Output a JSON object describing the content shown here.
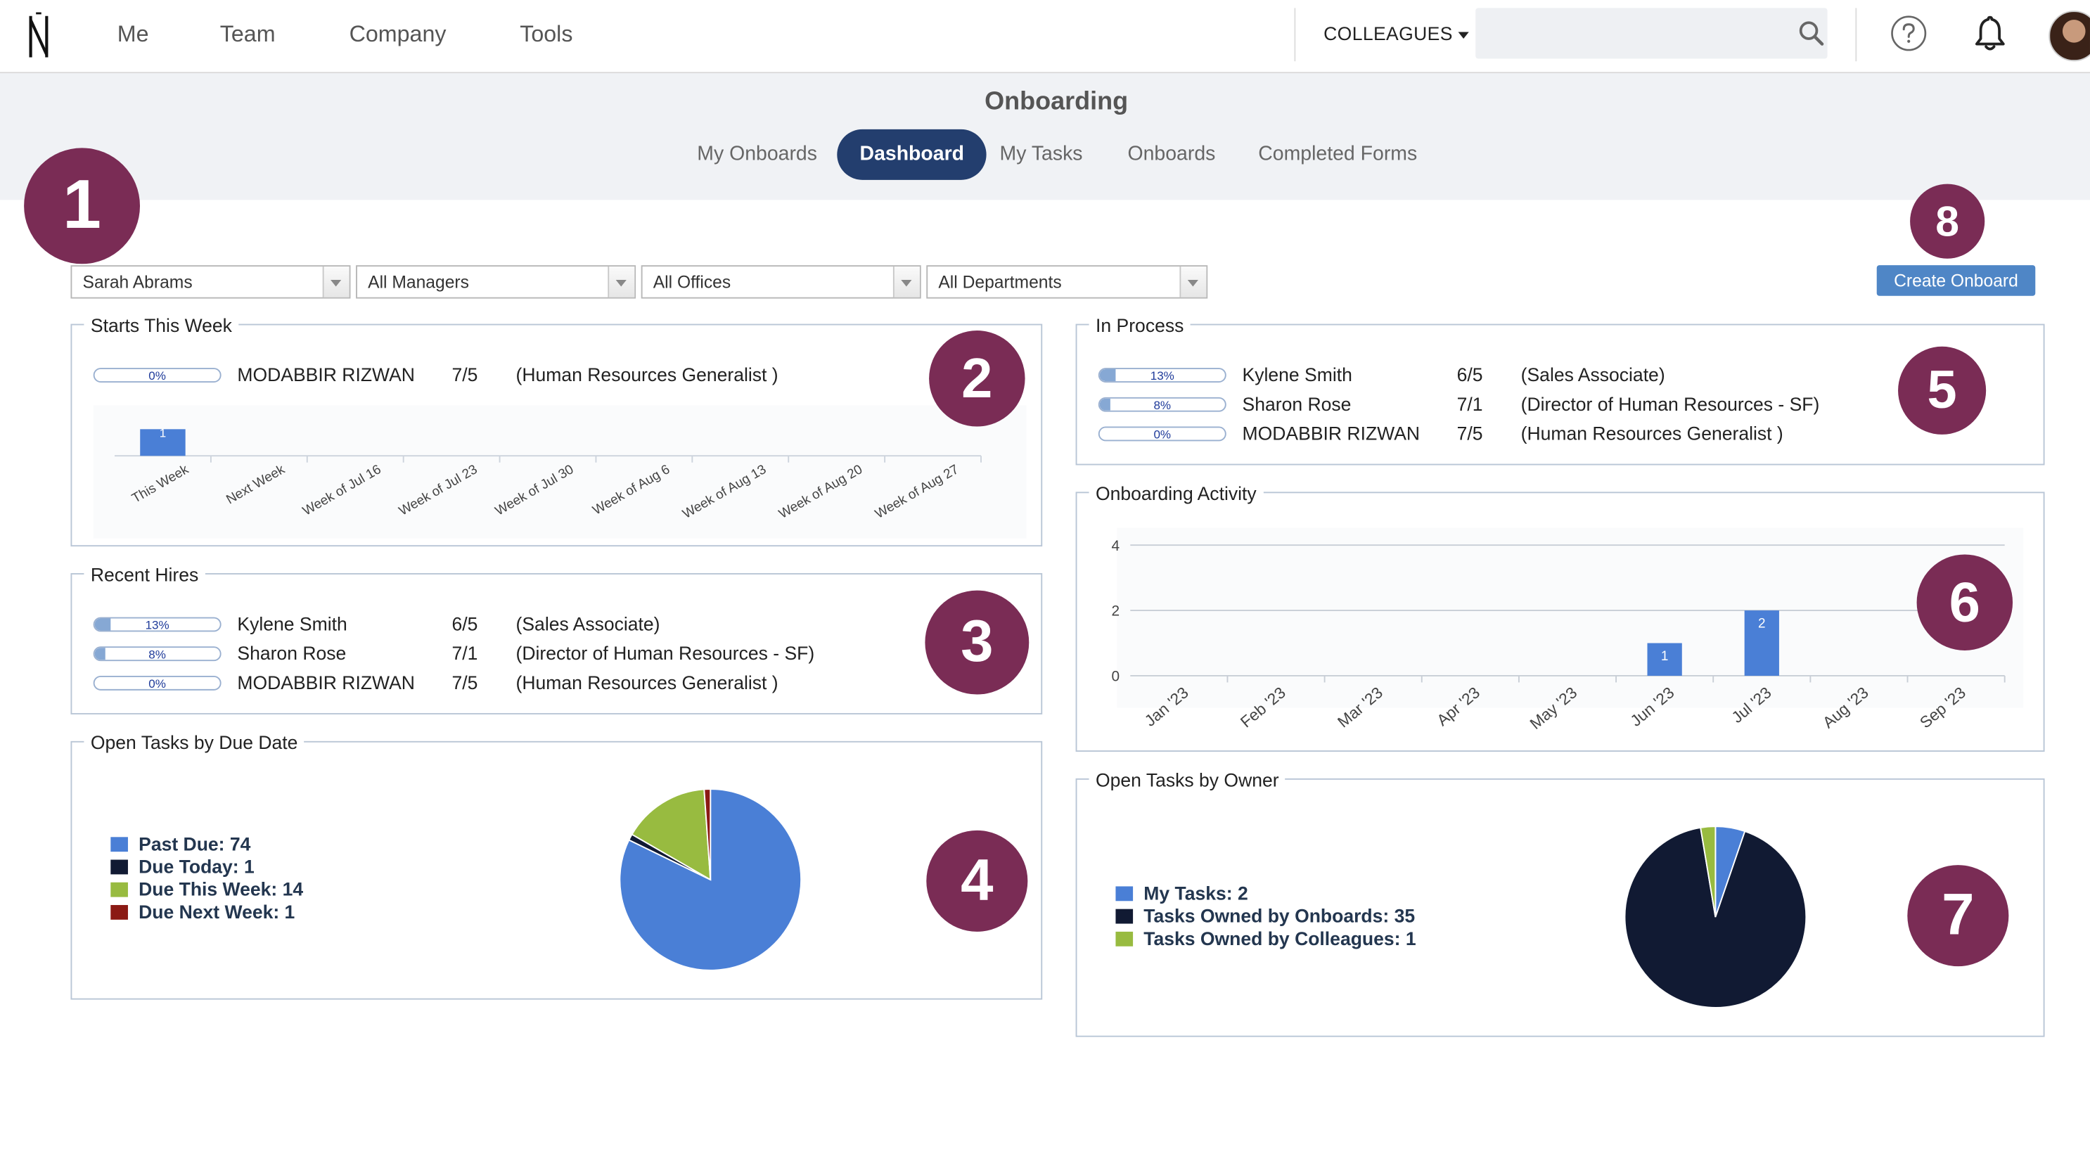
{
  "nav": {
    "items": [
      "Me",
      "Team",
      "Company",
      "Tools"
    ],
    "colleagues_label": "COLLEAGUES",
    "search_placeholder": ""
  },
  "header": {
    "title": "Onboarding",
    "tabs": [
      {
        "label": "My Onboards",
        "active": false
      },
      {
        "label": "Dashboard",
        "active": true
      },
      {
        "label": "My Tasks",
        "active": false
      },
      {
        "label": "Onboards",
        "active": false
      },
      {
        "label": "Completed Forms",
        "active": false
      }
    ]
  },
  "badges": [
    "1",
    "2",
    "3",
    "4",
    "5",
    "6",
    "7",
    "8"
  ],
  "filters": {
    "employee": "Sarah Abrams",
    "manager": "All Managers",
    "office": "All Offices",
    "department": "All Departments"
  },
  "create_button": "Create Onboard",
  "starts_this_week": {
    "title": "Starts This Week",
    "rows": [
      {
        "progress": "0%",
        "progress_value": 0,
        "name": "MODABBIR RIZWAN",
        "date": "7/5",
        "role": "(Human Resources Generalist )"
      }
    ]
  },
  "recent_hires": {
    "title": "Recent Hires",
    "rows": [
      {
        "progress": "13%",
        "progress_value": 13,
        "name": "Kylene Smith",
        "date": "6/5",
        "role": "(Sales Associate)"
      },
      {
        "progress": "8%",
        "progress_value": 8,
        "name": "Sharon Rose",
        "date": "7/1",
        "role": "(Director of Human Resources - SF)"
      },
      {
        "progress": "0%",
        "progress_value": 0,
        "name": "MODABBIR RIZWAN",
        "date": "7/5",
        "role": "(Human Resources Generalist )"
      }
    ]
  },
  "in_process": {
    "title": "In Process",
    "rows": [
      {
        "progress": "13%",
        "progress_value": 13,
        "name": "Kylene Smith",
        "date": "6/5",
        "role": "(Sales Associate)"
      },
      {
        "progress": "8%",
        "progress_value": 8,
        "name": "Sharon Rose",
        "date": "7/1",
        "role": "(Director of Human Resources - SF)"
      },
      {
        "progress": "0%",
        "progress_value": 0,
        "name": "MODABBIR RIZWAN",
        "date": "7/5",
        "role": "(Human Resources Generalist )"
      }
    ]
  },
  "open_tasks_due": {
    "title": "Open Tasks by Due Date"
  },
  "onboarding_activity": {
    "title": "Onboarding Activity"
  },
  "open_tasks_owner": {
    "title": "Open Tasks by Owner"
  },
  "chart_data": [
    {
      "type": "bar",
      "categories": [
        "This Week",
        "Next Week",
        "Week of Jul 16",
        "Week of Jul 23",
        "Week of Jul 30",
        "Week of Aug 6",
        "Week of Aug 13",
        "Week of Aug 20",
        "Week of Aug 27"
      ],
      "values": [
        1,
        0,
        0,
        0,
        0,
        0,
        0,
        0,
        0
      ],
      "data_labels": [
        "1",
        "",
        "",
        "",
        "",
        "",
        "",
        "",
        ""
      ],
      "ylim": [
        0,
        1
      ],
      "color": "#4a7fd6"
    },
    {
      "type": "pie",
      "labels": [
        "Past Due",
        "Due Today",
        "Due This Week",
        "Due Next Week"
      ],
      "legend": [
        "Past Due: 74",
        "Due Today: 1",
        "Due This Week: 14",
        "Due Next Week: 1"
      ],
      "values": [
        74,
        1,
        14,
        1
      ],
      "colors": [
        "#4a7fd6",
        "#111a33",
        "#98bb40",
        "#8b1a14"
      ],
      "legend_position": "left"
    },
    {
      "type": "bar",
      "categories": [
        "Jan '23",
        "Feb '23",
        "Mar '23",
        "Apr '23",
        "May '23",
        "Jun '23",
        "Jul '23",
        "Aug '23",
        "Sep '23"
      ],
      "values": [
        0,
        0,
        0,
        0,
        0,
        1,
        2,
        0,
        0
      ],
      "data_labels": [
        "",
        "",
        "",
        "",
        "",
        "1",
        "2",
        "",
        ""
      ],
      "ylim": [
        0,
        4
      ],
      "yticks": [
        "0",
        "2",
        "4"
      ],
      "grid": true,
      "color": "#4a7fd6"
    },
    {
      "type": "pie",
      "labels": [
        "My Tasks",
        "Tasks Owned by Onboards",
        "Tasks Owned by Colleagues"
      ],
      "legend": [
        "My Tasks: 2",
        "Tasks Owned by Onboards: 35",
        "Tasks Owned by Colleagues: 1"
      ],
      "values": [
        2,
        35,
        1
      ],
      "colors": [
        "#4a7fd6",
        "#111a33",
        "#98bb40"
      ],
      "legend_position": "left"
    }
  ]
}
